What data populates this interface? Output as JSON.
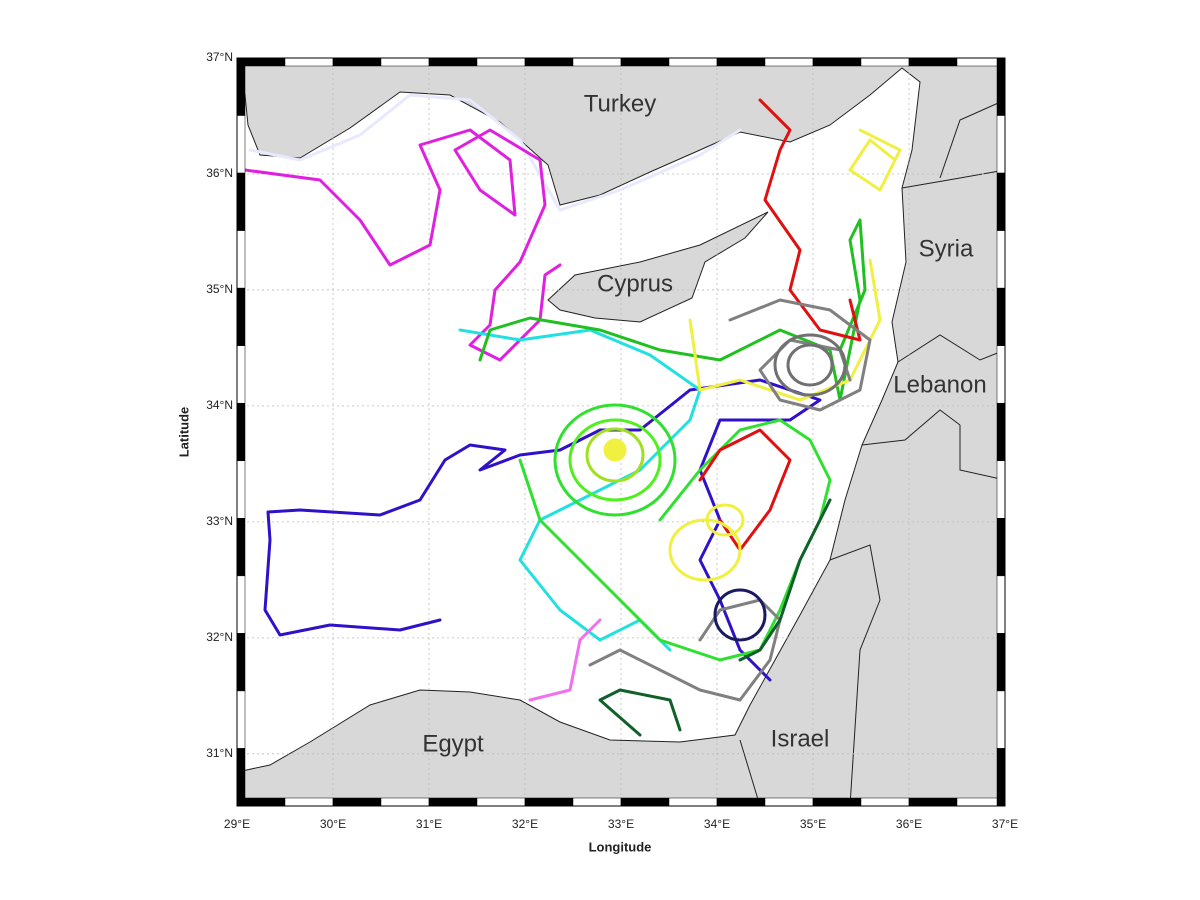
{
  "map": {
    "x_axis_label": "Longitude",
    "y_axis_label": "Latitude",
    "xlim": [
      29,
      37
    ],
    "ylim": [
      30.55,
      37
    ],
    "xticks": [
      {
        "value": 29,
        "label": "29°E"
      },
      {
        "value": 30,
        "label": "30°E"
      },
      {
        "value": 31,
        "label": "31°E"
      },
      {
        "value": 32,
        "label": "32°E"
      },
      {
        "value": 33,
        "label": "33°E"
      },
      {
        "value": 34,
        "label": "34°E"
      },
      {
        "value": 35,
        "label": "35°E"
      },
      {
        "value": 36,
        "label": "36°E"
      },
      {
        "value": 37,
        "label": "37°E"
      }
    ],
    "yticks": [
      {
        "value": 31,
        "label": "31°N"
      },
      {
        "value": 32,
        "label": "32°N"
      },
      {
        "value": 33,
        "label": "33°N"
      },
      {
        "value": 34,
        "label": "34°N"
      },
      {
        "value": 35,
        "label": "35°N"
      },
      {
        "value": 36,
        "label": "36°N"
      },
      {
        "value": 37,
        "label": "37°N"
      }
    ],
    "grid": true,
    "countries": [
      "Turkey",
      "Cyprus",
      "Syria",
      "Lebanon",
      "Egypt",
      "Israel"
    ]
  }
}
